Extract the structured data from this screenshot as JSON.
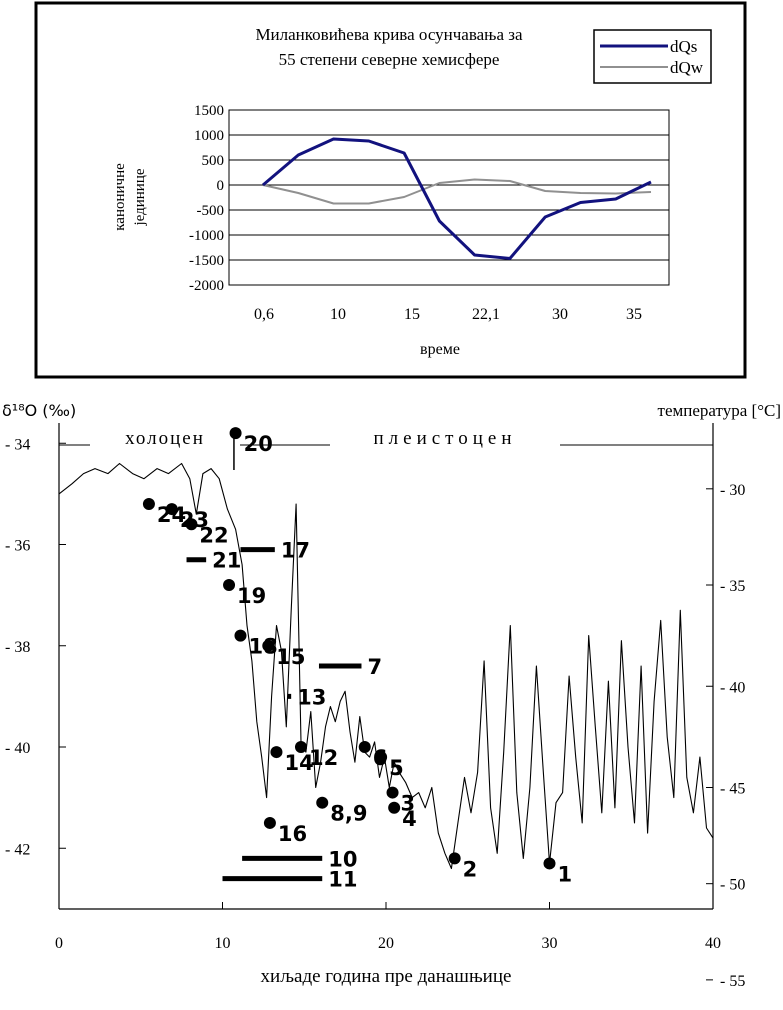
{
  "colors": {
    "dqs": "#12127e",
    "dqw": "#909090",
    "ink": "#000000",
    "frame": "#000000"
  },
  "chart_data": [
    {
      "type": "line",
      "title_lines": [
        "Миланковићева крива осунчавања за",
        "55 степени северне хемисфере"
      ],
      "xlabel": "време",
      "ylabel_lines": [
        "каноничне",
        "јединице"
      ],
      "ylim": [
        -2000,
        1500
      ],
      "yticks": [
        1500,
        1000,
        500,
        0,
        -500,
        -1000,
        -1500,
        -2000
      ],
      "xtick_labels": [
        "0,6",
        "10",
        "15",
        "22,1",
        "30",
        "35"
      ],
      "legend_position": "top-right",
      "grid": true,
      "series": [
        {
          "name": "dQs",
          "values": [
            0,
            600,
            920,
            880,
            640,
            -720,
            -1400,
            -1470,
            -640,
            -350,
            -280,
            60
          ]
        },
        {
          "name": "dQw",
          "values": [
            0,
            -160,
            -370,
            -370,
            -240,
            40,
            110,
            80,
            -120,
            -160,
            -170,
            -140
          ]
        }
      ]
    },
    {
      "type": "line",
      "left_axis_label": "δ¹⁸O (‰)",
      "right_axis_label": "температура [°C]",
      "xlabel": "хиљаде година пре данашњице",
      "xlim": [
        0,
        40
      ],
      "xticks": [
        0,
        10,
        20,
        30,
        40
      ],
      "ylim": [
        -43.2,
        -33.6
      ],
      "yticks_left": [
        {
          "v": -34,
          "label": "- 34"
        },
        {
          "v": -36,
          "label": "- 36"
        },
        {
          "v": -38,
          "label": "- 38"
        },
        {
          "v": -40,
          "label": "- 40"
        },
        {
          "v": -42,
          "label": "- 42"
        }
      ],
      "yticks_right": [
        {
          "v": -34.9,
          "label": "- 30"
        },
        {
          "v": -36.8,
          "label": "- 35"
        },
        {
          "v": -38.8,
          "label": "- 40"
        },
        {
          "v": -40.8,
          "label": "- 45"
        },
        {
          "v": -42.7,
          "label": "- 50"
        },
        {
          "v": -44.6,
          "label": "- 55"
        }
      ],
      "period_labels": [
        {
          "label": "холоцен",
          "x": 5
        },
        {
          "label": "плеистоцен",
          "x": 23
        }
      ],
      "boundary_x": 10.7,
      "series": [
        {
          "x": [
            0,
            0.8,
            1.5,
            2.2,
            3,
            3.7,
            4.5,
            5.2,
            6,
            6.7,
            7.5,
            8,
            8.4,
            8.8,
            9.3,
            9.8,
            10.3,
            10.8,
            11.2,
            11.5,
            11.8,
            12.1,
            12.4,
            12.7,
            13,
            13.3,
            13.6,
            13.9,
            14.2,
            14.5,
            14.8,
            15.1,
            15.4,
            15.7,
            16,
            16.3,
            16.6,
            16.9,
            17.2,
            17.5,
            17.8,
            18.1,
            18.4,
            18.7,
            19,
            19.3,
            19.6,
            19.9,
            20.2,
            20.5,
            20.8,
            21.2,
            21.6,
            22,
            22.4,
            22.8,
            23.2,
            23.6,
            24,
            24.4,
            24.8,
            25.2,
            25.6,
            26,
            26.4,
            26.8,
            27.2,
            27.6,
            28,
            28.4,
            28.8,
            29.2,
            29.6,
            30,
            30.4,
            30.8,
            31.2,
            31.6,
            32,
            32.4,
            32.8,
            33.2,
            33.6,
            34,
            34.4,
            34.8,
            35.2,
            35.6,
            36,
            36.4,
            36.8,
            37.2,
            37.6,
            38,
            38.4,
            38.8,
            39.2,
            39.6,
            40
          ],
          "values": [
            -35,
            -34.8,
            -34.6,
            -34.5,
            -34.6,
            -34.4,
            -34.6,
            -34.7,
            -34.5,
            -34.6,
            -34.4,
            -34.7,
            -35.4,
            -34.6,
            -34.5,
            -34.7,
            -35.3,
            -35.7,
            -36.4,
            -37.6,
            -38.3,
            -39.5,
            -40.2,
            -41,
            -39,
            -37.6,
            -38.1,
            -39.6,
            -37.3,
            -35.2,
            -39.9,
            -40.1,
            -39.3,
            -40.8,
            -40.3,
            -39.6,
            -39.2,
            -39.5,
            -39.1,
            -38.9,
            -39.7,
            -40.3,
            -39.4,
            -40.1,
            -40.2,
            -39.9,
            -40.6,
            -40.2,
            -40.8,
            -40.3,
            -40.5,
            -40.7,
            -41,
            -40.9,
            -41.2,
            -40.8,
            -41.7,
            -42.1,
            -42.4,
            -41.5,
            -40.6,
            -41.3,
            -40.5,
            -38.3,
            -41.2,
            -42.1,
            -40.1,
            -37.6,
            -40.9,
            -42.2,
            -40.8,
            -38.4,
            -40.4,
            -42.3,
            -41.1,
            -40.9,
            -38.6,
            -40.2,
            -41.5,
            -37.8,
            -39.6,
            -41.3,
            -38.7,
            -41.2,
            -37.9,
            -40,
            -41.5,
            -38.4,
            -41.7,
            -39.1,
            -37.5,
            -39.8,
            -41,
            -37.3,
            -40.6,
            -41.3,
            -40.2,
            -41.6,
            -41.8
          ]
        }
      ],
      "points": [
        {
          "x": 30,
          "y": -42.3,
          "label": "1"
        },
        {
          "x": 24.2,
          "y": -42.2,
          "label": "2"
        },
        {
          "x": 20.4,
          "y": -40.9,
          "label": "3"
        },
        {
          "x": 20.5,
          "y": -41.2,
          "label": "4"
        },
        {
          "x": 19.7,
          "y": -40.2,
          "label": "5"
        },
        {
          "x": 18.7,
          "y": -40,
          "label": "6"
        },
        {
          "x": 16.1,
          "y": -41.1,
          "label": "8,9"
        },
        {
          "x": 14.8,
          "y": -40,
          "label": "12"
        },
        {
          "x": 13.3,
          "y": -40.1,
          "label": "14"
        },
        {
          "x": 12.8,
          "y": -38,
          "label": "15"
        },
        {
          "x": 12.9,
          "y": -41.5,
          "label": "16"
        },
        {
          "x": 11.1,
          "y": -37.8,
          "label": "18"
        },
        {
          "x": 10.4,
          "y": -36.8,
          "label": "19"
        },
        {
          "x": 10.8,
          "y": -33.8,
          "label": "20"
        },
        {
          "x": 8.1,
          "y": -35.6,
          "label": "22"
        },
        {
          "x": 6.9,
          "y": -35.3,
          "label": "23"
        },
        {
          "x": 5.5,
          "y": -35.2,
          "label": "24"
        }
      ],
      "ranges": [
        {
          "x1": 11.2,
          "x2": 16.1,
          "y": -42.2,
          "label": "10"
        },
        {
          "x1": 10,
          "x2": 16.1,
          "y": -42.6,
          "label": "11"
        },
        {
          "x1": 11.1,
          "x2": 13.2,
          "y": -36.1,
          "label": "17"
        },
        {
          "x1": 7.8,
          "x2": 9,
          "y": -36.3,
          "label": "21"
        },
        {
          "x1": 15.9,
          "x2": 18.5,
          "y": -38.4,
          "label": "7"
        },
        {
          "x1": 14,
          "x2": 14.2,
          "y": -39,
          "label": "13"
        }
      ]
    }
  ]
}
